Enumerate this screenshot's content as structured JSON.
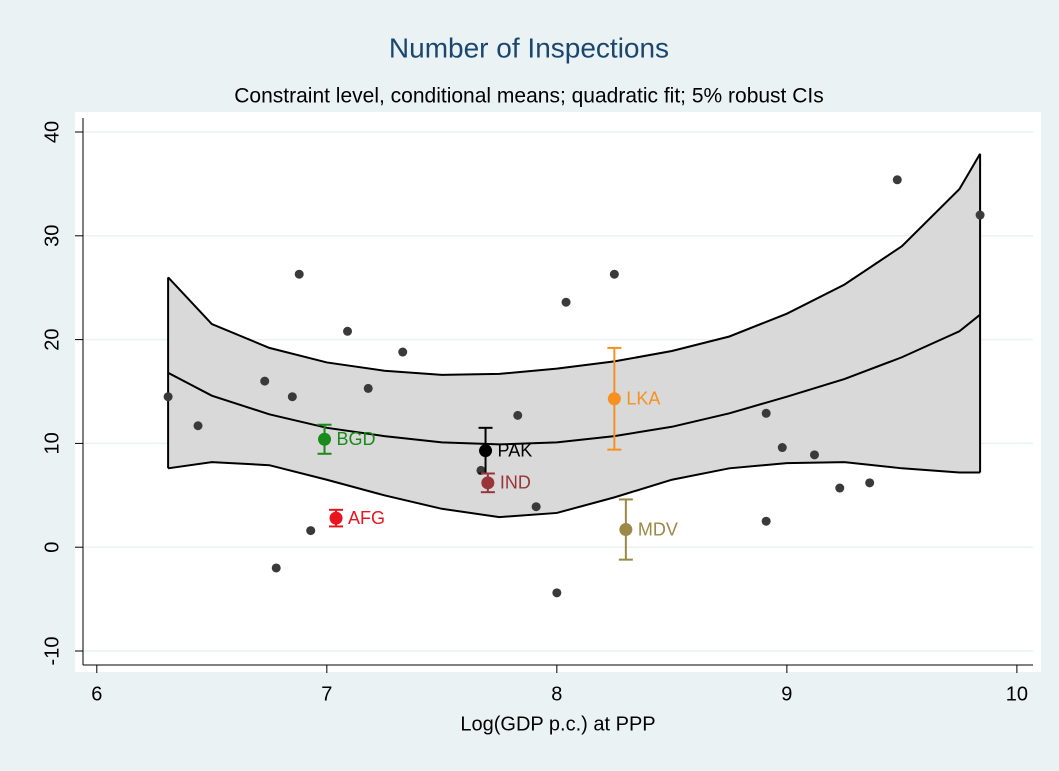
{
  "chart_data": {
    "type": "scatter",
    "title": "Number of Inspections",
    "subtitle": "Constraint level, conditional means; quadratic fit; 5% robust CIs",
    "x_label": "Log(GDP p.c.) at PPP",
    "xlim": [
      5.94,
      10.07
    ],
    "ylim": [
      -11.35,
      41.35
    ],
    "xticks": [
      6,
      7,
      8,
      9,
      10
    ],
    "yticks": [
      -10,
      0,
      10,
      20,
      30,
      40
    ],
    "grid": true,
    "points": {
      "color": "#3a3a3a",
      "x": [
        6.31,
        6.44,
        6.73,
        6.78,
        6.85,
        6.88,
        6.93,
        7.09,
        7.18,
        7.33,
        7.67,
        7.83,
        7.91,
        8.0,
        8.04,
        8.25,
        8.91,
        8.91,
        8.98,
        9.12,
        9.23,
        9.36,
        9.48,
        9.84
      ],
      "y": [
        14.5,
        11.7,
        16.0,
        -2.0,
        14.5,
        26.3,
        1.6,
        20.8,
        15.3,
        18.8,
        7.4,
        12.7,
        3.9,
        -4.4,
        23.6,
        26.3,
        12.9,
        2.5,
        9.6,
        8.9,
        5.7,
        6.2,
        35.4,
        32.0
      ]
    },
    "highlights": [
      {
        "name": "BGD",
        "color": "#1a8a1a",
        "x": 6.99,
        "y": 10.4,
        "error": 1.4
      },
      {
        "name": "AFG",
        "color": "#e8141e",
        "x": 7.04,
        "y": 2.8,
        "error": 0.8
      },
      {
        "name": "PAK",
        "color": "#000000",
        "x": 7.69,
        "y": 9.3,
        "error": 2.2
      },
      {
        "name": "IND",
        "color": "#9a3438",
        "x": 7.7,
        "y": 6.2,
        "error": 0.9
      },
      {
        "name": "LKA",
        "color": "#f7901e",
        "x": 8.25,
        "y": 14.3,
        "error": 4.9
      },
      {
        "name": "MDV",
        "color": "#9c8847",
        "x": 8.3,
        "y": 1.7,
        "error": 2.9
      }
    ],
    "fit": {
      "fill": "#d9d9d9",
      "x": [
        6.31,
        6.5,
        6.75,
        7.0,
        7.25,
        7.5,
        7.75,
        8.0,
        8.25,
        8.5,
        8.75,
        9.0,
        9.25,
        9.5,
        9.75,
        9.84
      ],
      "y": [
        16.8,
        14.6,
        12.8,
        11.5,
        10.7,
        10.1,
        9.9,
        10.1,
        10.7,
        11.6,
        12.9,
        14.5,
        16.2,
        18.3,
        20.8,
        22.4
      ],
      "upper": [
        26.0,
        21.5,
        19.2,
        17.8,
        17.0,
        16.6,
        16.7,
        17.2,
        17.9,
        18.9,
        20.3,
        22.5,
        25.3,
        29.0,
        34.5,
        37.9
      ],
      "lower": [
        7.6,
        8.2,
        7.9,
        6.5,
        5.0,
        3.7,
        2.9,
        3.3,
        4.8,
        6.5,
        7.6,
        8.1,
        8.2,
        7.6,
        7.2,
        7.2
      ]
    }
  }
}
